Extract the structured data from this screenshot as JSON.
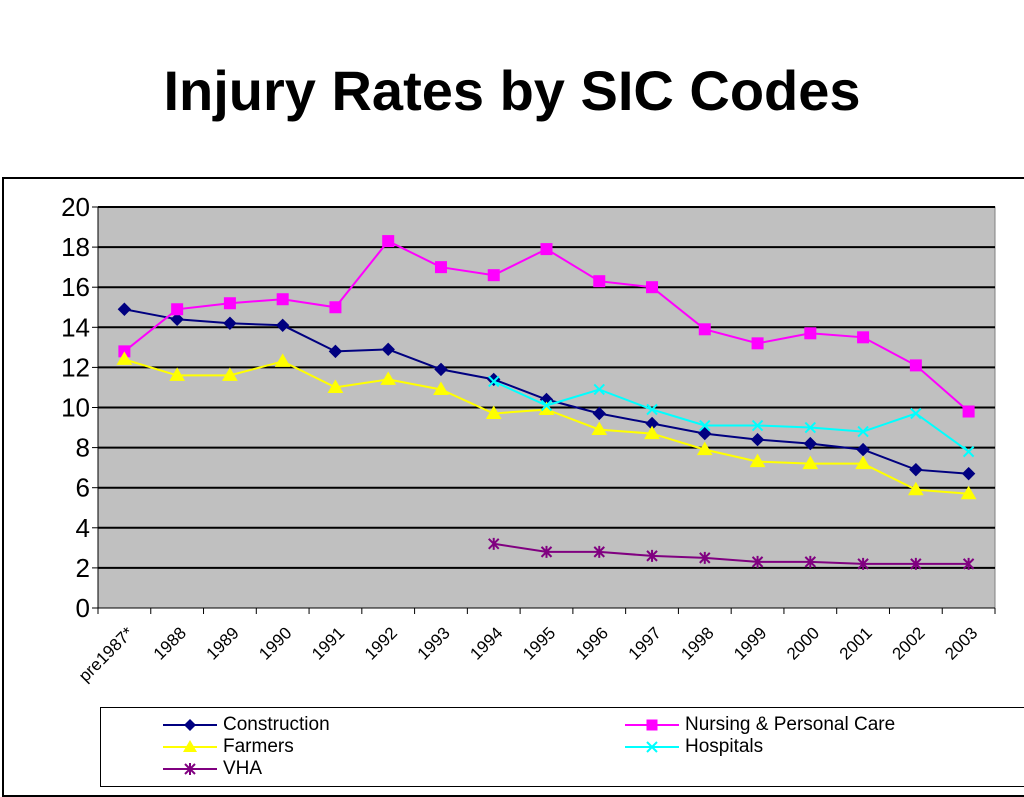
{
  "slide": {
    "title": "Injury Rates by SIC Codes"
  },
  "chart_data": {
    "type": "line",
    "title": "Injury Rates by SIC Codes",
    "xlabel": "",
    "ylabel": "",
    "categories": [
      "pre1987*",
      "1988",
      "1989",
      "1990",
      "1991",
      "1992",
      "1993",
      "1994",
      "1995",
      "1996",
      "1997",
      "1998",
      "1999",
      "2000",
      "2001",
      "2002",
      "2003"
    ],
    "ylim": [
      0,
      20
    ],
    "yticks": [
      0,
      2,
      4,
      6,
      8,
      10,
      12,
      14,
      16,
      18,
      20
    ],
    "grid": true,
    "legend": "bottom",
    "plot_background": "#c0c0c0",
    "series": [
      {
        "name": "Construction",
        "color": "#000080",
        "marker": "diamond",
        "values": [
          14.9,
          14.4,
          14.2,
          14.1,
          12.8,
          12.9,
          11.9,
          11.4,
          10.4,
          9.7,
          9.2,
          8.7,
          8.4,
          8.2,
          7.9,
          6.9,
          6.7
        ]
      },
      {
        "name": "Nursing & Personal Care",
        "color": "#ff00ff",
        "marker": "square",
        "values": [
          12.8,
          14.9,
          15.2,
          15.4,
          15.0,
          18.3,
          17.0,
          16.6,
          17.9,
          16.3,
          16.0,
          13.9,
          13.2,
          13.7,
          13.5,
          12.1,
          9.8
        ]
      },
      {
        "name": "Farmers",
        "color": "#ffff00",
        "marker": "triangle",
        "values": [
          12.4,
          11.6,
          11.6,
          12.3,
          11.0,
          11.4,
          10.9,
          9.7,
          9.9,
          8.9,
          8.7,
          7.9,
          7.3,
          7.2,
          7.2,
          5.9,
          5.7
        ]
      },
      {
        "name": "Hospitals",
        "color": "#00ffff",
        "marker": "x",
        "values": [
          null,
          null,
          null,
          null,
          null,
          null,
          null,
          11.3,
          10.1,
          10.9,
          9.9,
          9.1,
          9.1,
          9.0,
          8.8,
          9.7,
          7.8
        ]
      },
      {
        "name": "VHA",
        "color": "#800080",
        "marker": "star",
        "values": [
          null,
          null,
          null,
          null,
          null,
          null,
          null,
          3.2,
          2.8,
          2.8,
          2.6,
          2.5,
          2.3,
          2.3,
          2.2,
          2.2,
          2.2
        ]
      }
    ]
  }
}
